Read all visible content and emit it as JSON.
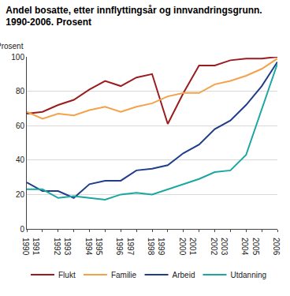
{
  "chart_data": {
    "type": "line",
    "title": "Andel bosatte, etter innflyttingsår og innvandringsgrunn.\n1990-2006. Prosent",
    "y_label": "Prosent",
    "x": [
      1990,
      1991,
      1992,
      1993,
      1994,
      1995,
      1996,
      1997,
      1998,
      1999,
      2000,
      2001,
      2002,
      2003,
      2004,
      2005,
      2006
    ],
    "series": [
      {
        "name": "Flukt",
        "color": "#9b1c1f",
        "values": [
          67,
          68,
          72,
          75,
          81,
          86,
          83,
          88,
          90,
          61,
          79,
          95,
          95,
          98,
          99,
          99,
          100
        ]
      },
      {
        "name": "Familie",
        "color": "#f4a24a",
        "values": [
          68,
          64,
          67,
          66,
          69,
          71,
          68,
          71,
          73,
          77,
          79,
          79,
          84,
          86,
          89,
          93,
          99
        ]
      },
      {
        "name": "Arbeid",
        "color": "#1f3d8c",
        "values": [
          27,
          22,
          22,
          18,
          26,
          28,
          28,
          34,
          35,
          37,
          44,
          49,
          58,
          63,
          72,
          83,
          97
        ]
      },
      {
        "name": "Utdanning",
        "color": "#1ba7a1",
        "values": [
          23,
          23,
          18,
          19,
          18,
          17,
          20,
          21,
          20,
          23,
          26,
          29,
          33,
          34,
          43,
          70,
          96
        ]
      }
    ],
    "xlim": [
      1990,
      2006
    ],
    "xticks": [
      1990,
      1991,
      1992,
      1993,
      1994,
      1995,
      1996,
      1997,
      1998,
      1999,
      2000,
      2001,
      2002,
      2003,
      2004,
      2005,
      2006
    ],
    "ylim": [
      0,
      100
    ],
    "yticks": [
      0,
      20,
      40,
      60,
      80,
      100
    ],
    "grid": true,
    "legend": "bottom"
  }
}
